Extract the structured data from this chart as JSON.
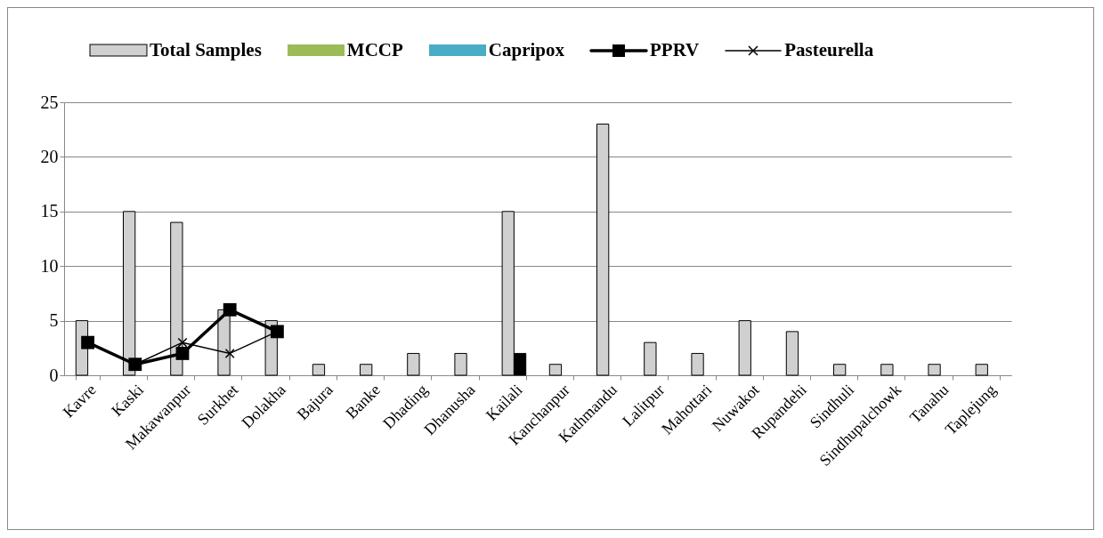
{
  "chart_data": {
    "type": "bar",
    "categories": [
      "Kavre",
      "Kaski",
      "Makawanpur",
      "Surkhet",
      "Dolakha",
      "Bajura",
      "Banke",
      "Dhading",
      "Dhanusha",
      "Kailali",
      "Kanchanpur",
      "Kathmandu",
      "Lalitpur",
      "Mahottari",
      "Nuwakot",
      "Rupandehi",
      "Sindhuli",
      "Sindhupalchowk",
      "Tanahu",
      "Taplejung"
    ],
    "series": [
      {
        "name": "Total Samples",
        "color": "#d0d0d0",
        "values": [
          5,
          15,
          14,
          6,
          5,
          1,
          1,
          2,
          2,
          15,
          1,
          23,
          3,
          2,
          5,
          4,
          1,
          1,
          1,
          1
        ]
      },
      {
        "name": "MCCP",
        "color": "#9bbb59",
        "values": [
          null,
          null,
          null,
          null,
          null,
          null,
          null,
          null,
          null,
          null,
          null,
          null,
          null,
          null,
          null,
          null,
          null,
          null,
          null,
          null
        ]
      },
      {
        "name": "Capripox",
        "color": "#4bacc6",
        "values": [
          null,
          null,
          null,
          null,
          null,
          null,
          null,
          null,
          null,
          null,
          null,
          null,
          null,
          null,
          null,
          null,
          null,
          null,
          null,
          null
        ]
      },
      {
        "type": "bar",
        "color": "#000000",
        "values": [
          null,
          null,
          null,
          null,
          null,
          null,
          null,
          null,
          null,
          2,
          null,
          null,
          null,
          null,
          null,
          null,
          null,
          null,
          null,
          null
        ]
      },
      {
        "name": "PPRV",
        "type": "line",
        "marker": "square",
        "color": "#000000",
        "values": [
          3,
          1,
          2,
          6,
          4,
          null,
          null,
          null,
          null,
          null,
          null,
          null,
          null,
          null,
          null,
          null,
          null,
          null,
          null,
          null
        ]
      },
      {
        "name": "Pasteurella",
        "type": "line",
        "marker": "cross",
        "color": "#000000",
        "values": [
          3,
          1,
          3,
          2,
          4,
          null,
          null,
          null,
          null,
          null,
          null,
          null,
          null,
          null,
          null,
          null,
          null,
          null,
          null,
          null
        ]
      }
    ],
    "ylim": [
      0,
      25
    ],
    "yticks": [
      0,
      5,
      10,
      15,
      20,
      25
    ],
    "grid": "y",
    "legend": "top"
  }
}
